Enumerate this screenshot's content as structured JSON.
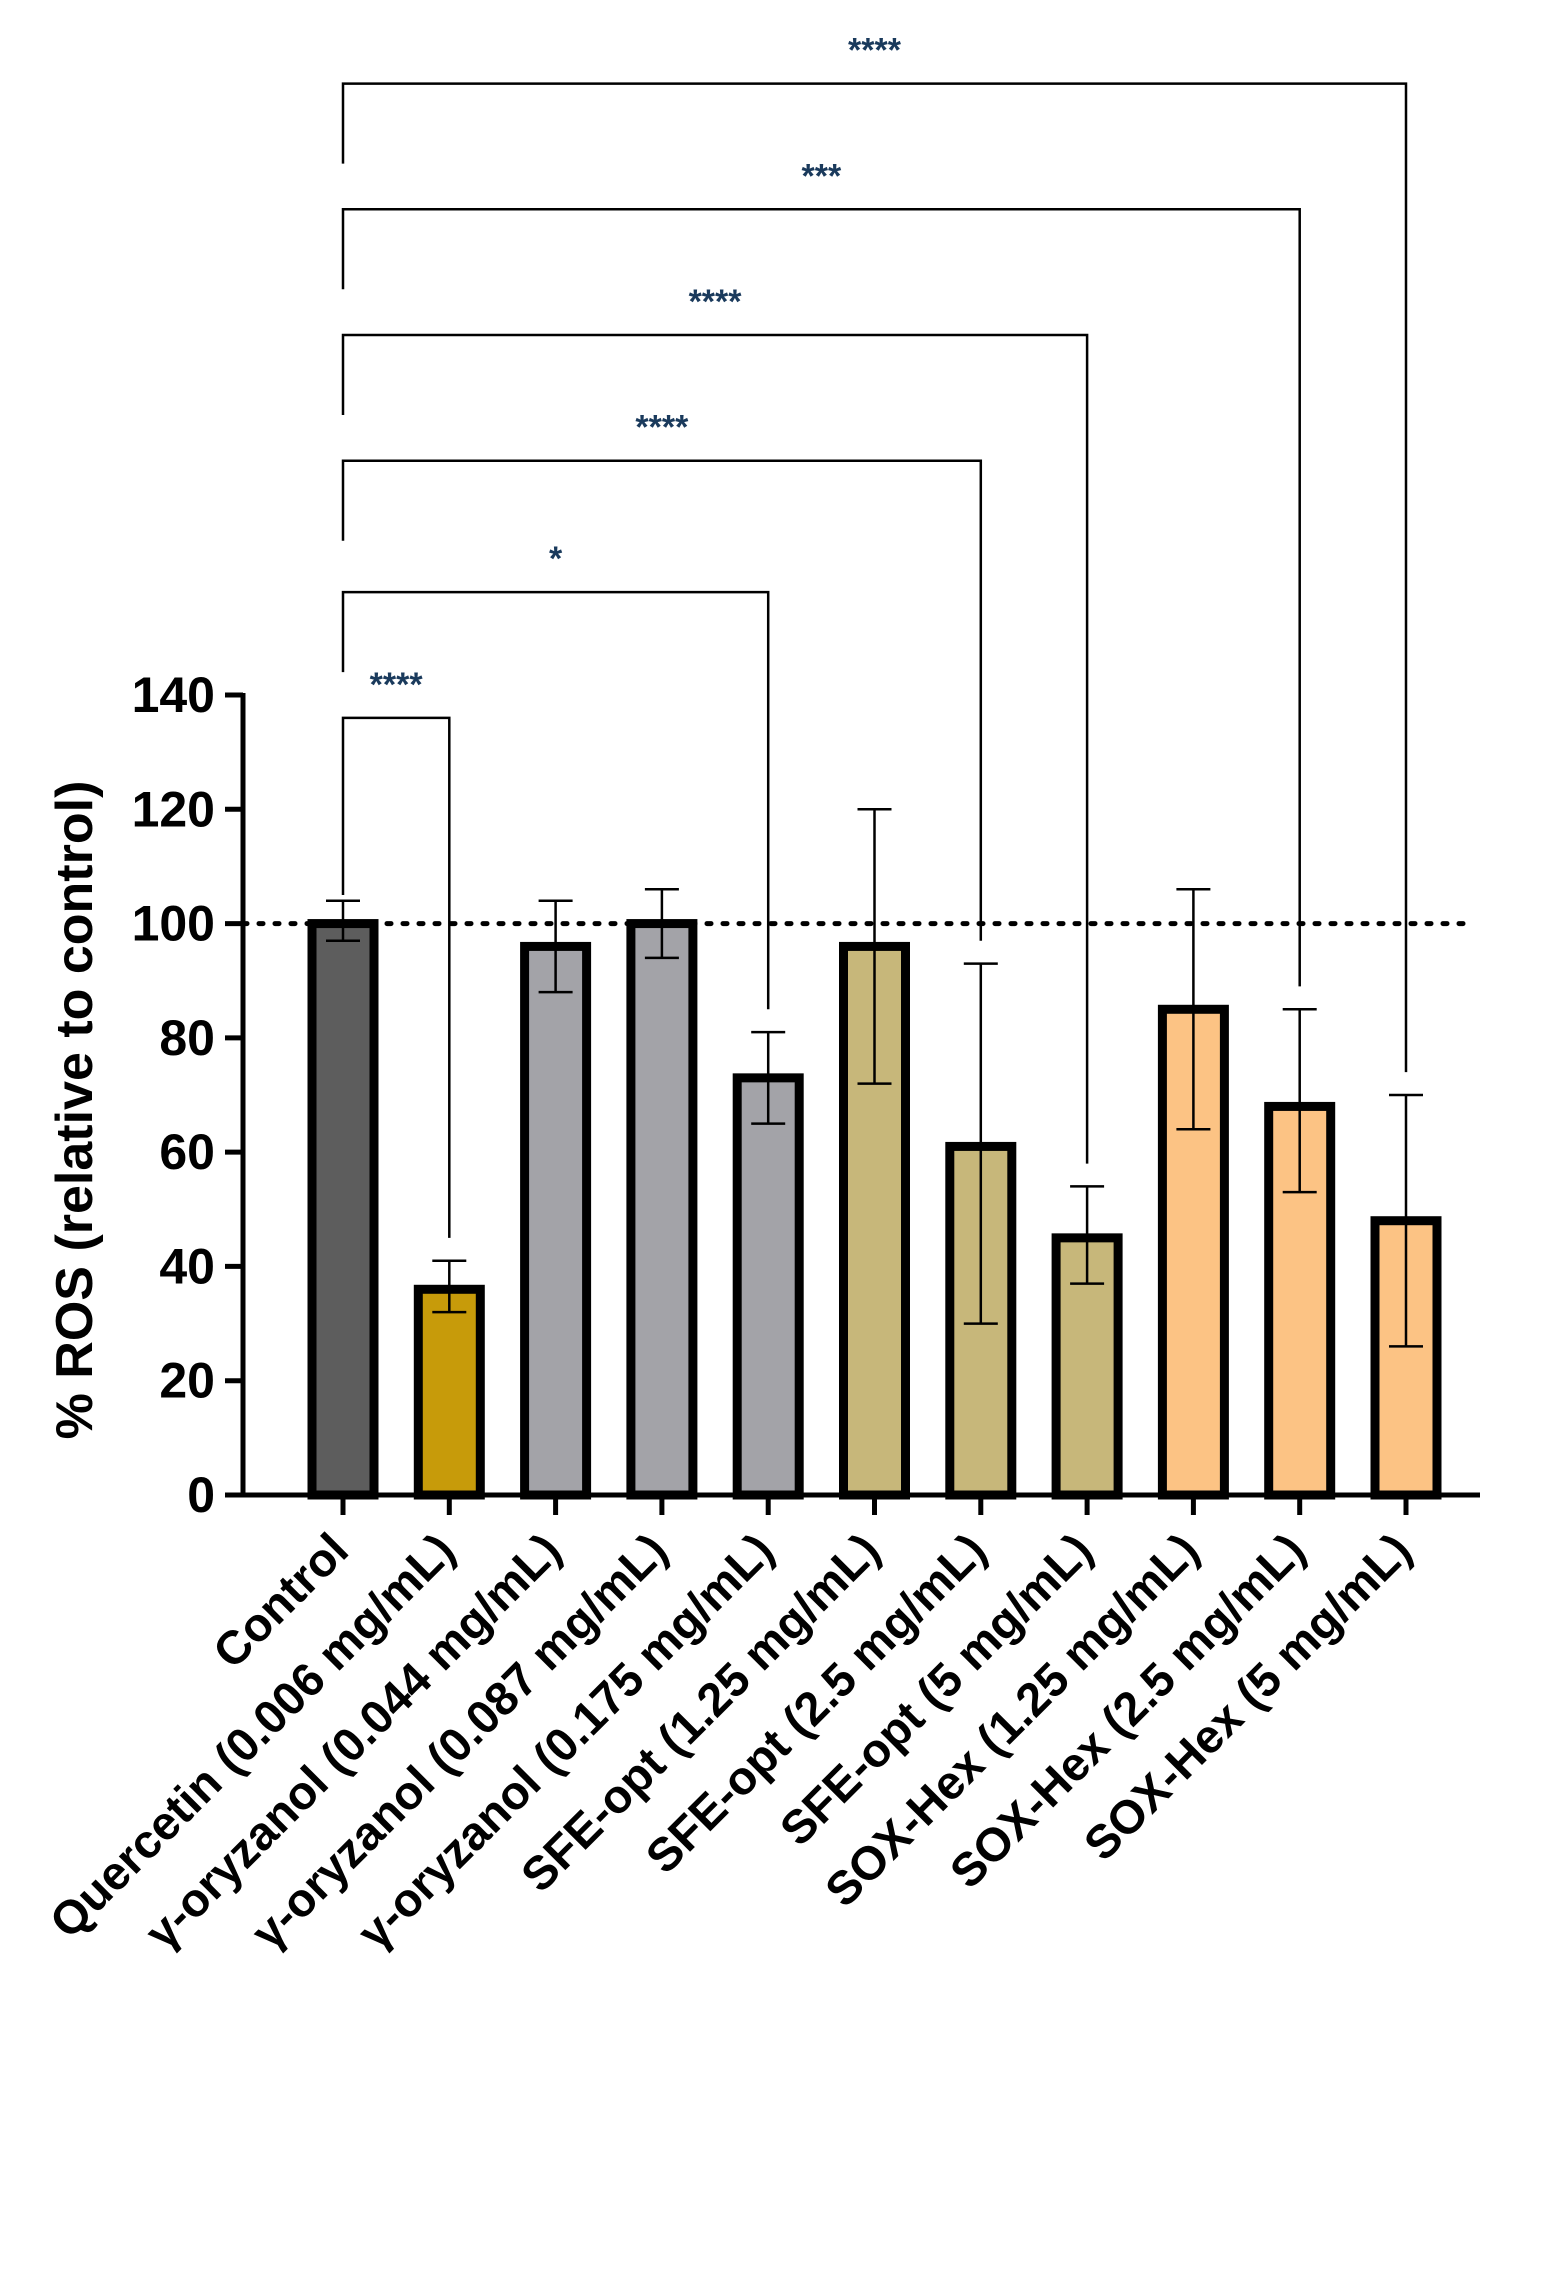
{
  "chart_data": {
    "type": "bar",
    "title": "",
    "xlabel": "",
    "ylabel": "% ROS (relative to control)",
    "ylim": [
      0,
      140
    ],
    "yticks": [
      0,
      20,
      40,
      60,
      80,
      100,
      120,
      140
    ],
    "reference_line": 100,
    "categories": [
      "Control",
      "Quercetin (0.006 mg/mL)",
      "γ-oryzanol (0.044 mg/mL)",
      "γ-oryzanol (0.087 mg/mL)",
      "γ-oryzanol (0.175 mg/mL)",
      "SFE-opt (1.25 mg/mL)",
      "SFE-opt (2.5 mg/mL)",
      "SFE-opt (5 mg/mL)",
      "SOX-Hex (1.25 mg/mL)",
      "SOX-Hex (2.5 mg/mL)",
      "SOX-Hex (5 mg/mL)"
    ],
    "values": [
      100,
      36,
      96,
      100,
      73,
      96,
      61,
      45,
      85,
      68,
      48
    ],
    "error_low": [
      97,
      32,
      88,
      94,
      65,
      72,
      30,
      37,
      64,
      53,
      26
    ],
    "error_high": [
      104,
      41,
      104,
      106,
      81,
      120,
      93,
      54,
      106,
      85,
      70
    ],
    "colors": [
      "#5d5d5d",
      "#c79b0a",
      "#a3a3a8",
      "#a3a3a8",
      "#a3a3a8",
      "#c7b77a",
      "#c7b77a",
      "#c7b77a",
      "#fcc384",
      "#fcc384",
      "#fcc384"
    ],
    "significance": [
      {
        "from": 0,
        "to": 1,
        "label": "****",
        "line_value": 136
      },
      {
        "from": 0,
        "to": 4,
        "label": "*",
        "line_value": 158
      },
      {
        "from": 0,
        "to": 6,
        "label": "****",
        "line_value": 181
      },
      {
        "from": 0,
        "to": 7,
        "label": "****",
        "line_value": 203
      },
      {
        "from": 0,
        "to": 9,
        "label": "***",
        "line_value": 225
      },
      {
        "from": 0,
        "to": 10,
        "label": "****",
        "line_value": 247
      }
    ]
  }
}
